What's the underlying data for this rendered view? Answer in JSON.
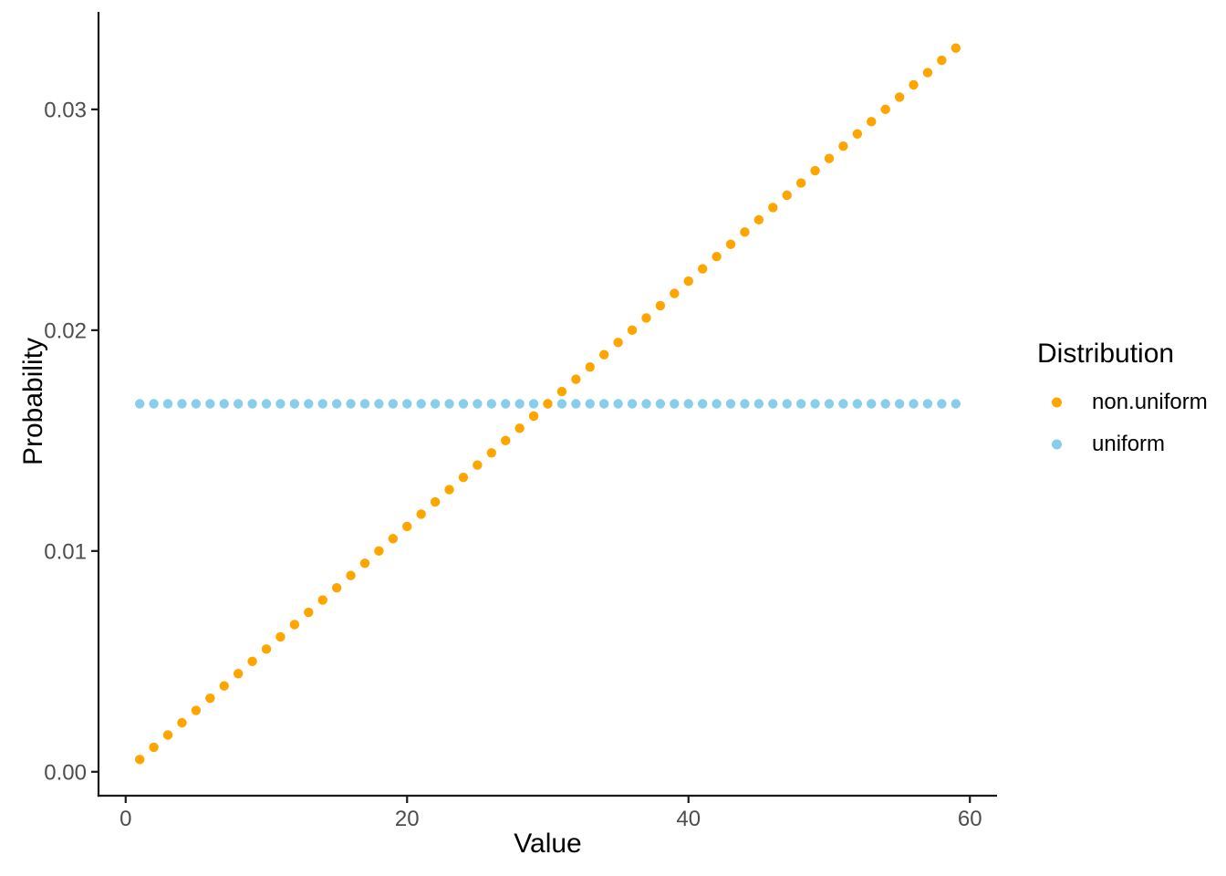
{
  "axes": {
    "x_title": "Value",
    "y_title": "Probability"
  },
  "legend": {
    "title": "Distribution",
    "items": [
      {
        "label": "non.uniform",
        "color": "#FFA500"
      },
      {
        "label": "uniform",
        "color": "#87CEEB"
      }
    ]
  },
  "colors": {
    "background": "#ffffff",
    "axis_line": "#1a1a1a",
    "tick_mark": "#1a1a1a",
    "tick_label": "#4d4d4d",
    "title_text": "#000000",
    "non_uniform_point": "#FFA500",
    "uniform_point": "#87CEEB"
  },
  "chart_data": {
    "type": "scatter",
    "title": "",
    "xlabel": "Value",
    "ylabel": "Probability",
    "legend_title": "Distribution",
    "legend_position": "right",
    "grid": false,
    "xlim": [
      -1.93,
      61.93
    ],
    "ylim": [
      -0.001083,
      0.034417
    ],
    "x_ticks": {
      "values": [
        0,
        20,
        40,
        60
      ],
      "labels": [
        "0",
        "20",
        "40",
        "60"
      ]
    },
    "y_ticks": {
      "values": [
        0,
        0.01,
        0.02,
        0.03
      ],
      "labels": [
        "0.00",
        "0.01",
        "0.02",
        "0.03"
      ]
    },
    "x": [
      1,
      2,
      3,
      4,
      5,
      6,
      7,
      8,
      9,
      10,
      11,
      12,
      13,
      14,
      15,
      16,
      17,
      18,
      19,
      20,
      21,
      22,
      23,
      24,
      25,
      26,
      27,
      28,
      29,
      30,
      31,
      32,
      33,
      34,
      35,
      36,
      37,
      38,
      39,
      40,
      41,
      42,
      43,
      44,
      45,
      46,
      47,
      48,
      49,
      50,
      51,
      52,
      53,
      54,
      55,
      56,
      57,
      58,
      59
    ],
    "series": [
      {
        "name": "uniform",
        "color": "#87CEEB",
        "values": [
          0.016667,
          0.016667,
          0.016667,
          0.016667,
          0.016667,
          0.016667,
          0.016667,
          0.016667,
          0.016667,
          0.016667,
          0.016667,
          0.016667,
          0.016667,
          0.016667,
          0.016667,
          0.016667,
          0.016667,
          0.016667,
          0.016667,
          0.016667,
          0.016667,
          0.016667,
          0.016667,
          0.016667,
          0.016667,
          0.016667,
          0.016667,
          0.016667,
          0.016667,
          0.016667,
          0.016667,
          0.016667,
          0.016667,
          0.016667,
          0.016667,
          0.016667,
          0.016667,
          0.016667,
          0.016667,
          0.016667,
          0.016667,
          0.016667,
          0.016667,
          0.016667,
          0.016667,
          0.016667,
          0.016667,
          0.016667,
          0.016667,
          0.016667,
          0.016667,
          0.016667,
          0.016667,
          0.016667,
          0.016667,
          0.016667,
          0.016667,
          0.016667,
          0.016667
        ]
      },
      {
        "name": "non.uniform",
        "color": "#FFA500",
        "values": [
          0.000556,
          0.001111,
          0.001667,
          0.002222,
          0.002778,
          0.003333,
          0.003889,
          0.004444,
          0.005,
          0.005556,
          0.006111,
          0.006667,
          0.007222,
          0.007778,
          0.008333,
          0.008889,
          0.009444,
          0.01,
          0.010556,
          0.011111,
          0.011667,
          0.012222,
          0.012778,
          0.013333,
          0.013889,
          0.014444,
          0.015,
          0.015556,
          0.016111,
          0.016667,
          0.017222,
          0.017778,
          0.018333,
          0.018889,
          0.019444,
          0.02,
          0.020556,
          0.021111,
          0.021667,
          0.022222,
          0.022778,
          0.023333,
          0.023889,
          0.024444,
          0.025,
          0.025556,
          0.026111,
          0.026667,
          0.027222,
          0.027778,
          0.028333,
          0.028889,
          0.029444,
          0.03,
          0.030556,
          0.031111,
          0.031667,
          0.032222,
          0.032778
        ]
      }
    ]
  }
}
